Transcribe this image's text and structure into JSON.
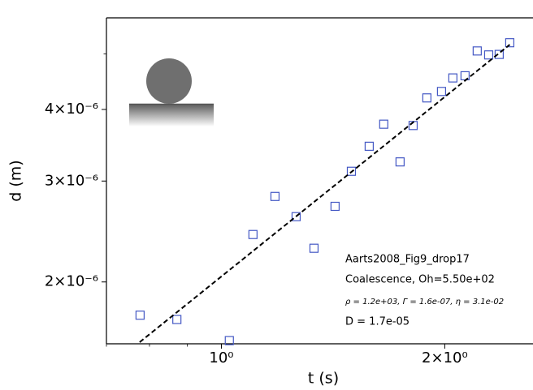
{
  "chart_data": {
    "type": "scatter",
    "xlabel": "t (s)",
    "ylabel": "d (m)",
    "xscale": "log",
    "yscale": "log",
    "xlim": [
      0.7,
      2.63
    ],
    "ylim": [
      1.56e-06,
      5.78e-06
    ],
    "xticks": [
      {
        "value": 1,
        "label": "10⁰"
      },
      {
        "value": 2,
        "label": "2×10⁰"
      }
    ],
    "xticks_minor": [
      0.7,
      0.8,
      0.9
    ],
    "yticks": [
      {
        "value": 2e-06,
        "label": "2×10⁻⁶"
      },
      {
        "value": 3e-06,
        "label": "3×10⁻⁶"
      },
      {
        "value": 4e-06,
        "label": "4×10⁻⁶"
      }
    ],
    "yticks_minor": [
      5e-06
    ],
    "marker_color": "#4458c4",
    "line_color": "#000000",
    "x": [
      0.777,
      0.871,
      1.025,
      1.103,
      1.181,
      1.261,
      1.333,
      1.423,
      1.497,
      1.582,
      1.655,
      1.741,
      1.813,
      1.892,
      1.98,
      2.051,
      2.13,
      2.212,
      2.292,
      2.368,
      2.447
    ],
    "values": [
      1.75e-06,
      1.72e-06,
      1.58e-06,
      2.42e-06,
      2.82e-06,
      2.6e-06,
      2.29e-06,
      2.71e-06,
      3.12e-06,
      3.45e-06,
      3.77e-06,
      3.24e-06,
      3.75e-06,
      4.19e-06,
      4.3e-06,
      4.54e-06,
      4.58e-06,
      5.06e-06,
      4.98e-06,
      4.99e-06,
      5.23e-06
    ],
    "fit_line": {
      "x": [
        0.776,
        2.447
      ],
      "y": [
        1.57e-06,
        5.19e-06
      ]
    },
    "annotations": [
      "Aarts2008_Fig9_drop17",
      "Coalescence, Oh=5.50e+02",
      "ρ = 1.2e+03, Γ = 1.6e-07, η = 3.1e-02",
      "D = 1.7e-05"
    ]
  }
}
